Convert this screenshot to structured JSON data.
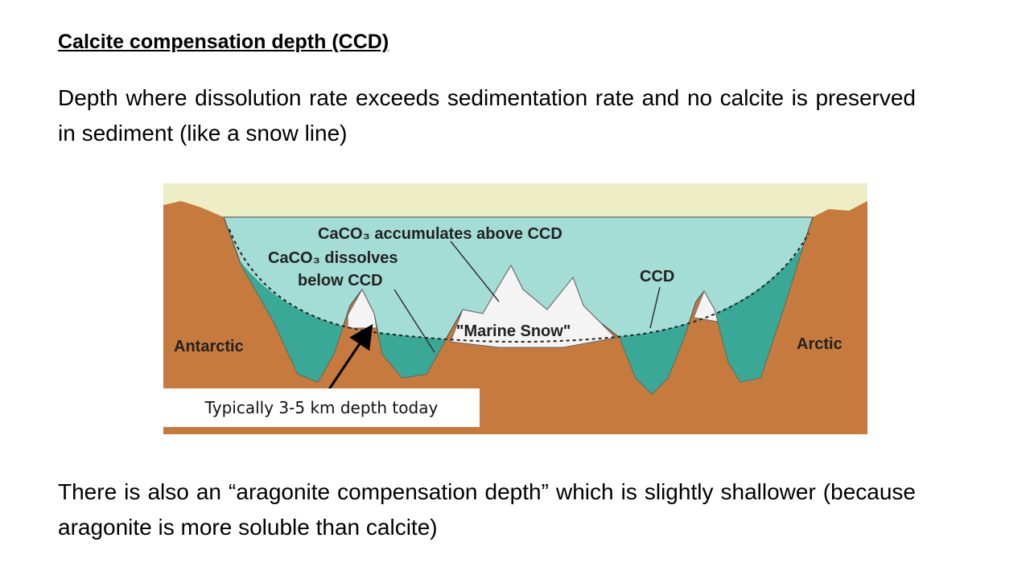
{
  "title": "Calcite compensation depth (CCD)",
  "paragraphs": [
    "Depth where dissolution rate exceeds sedimentation rate and no calcite is preserved in sediment (like a snow line)",
    "There is also an “aragonite compensation depth” which is slightly shallower (because aragonite is more soluble than calcite)"
  ],
  "diagram": {
    "labels": {
      "accumulates": "CaCO₃ accumulates above CCD",
      "dissolves": "CaCO₃ dissolves",
      "below": "below CCD",
      "ccd": "CCD",
      "marine_snow": "\"Marine Snow\"",
      "antarctic": "Antarctic",
      "arctic": "Arctic"
    },
    "callout": "Typically 3-5 km depth today"
  }
}
